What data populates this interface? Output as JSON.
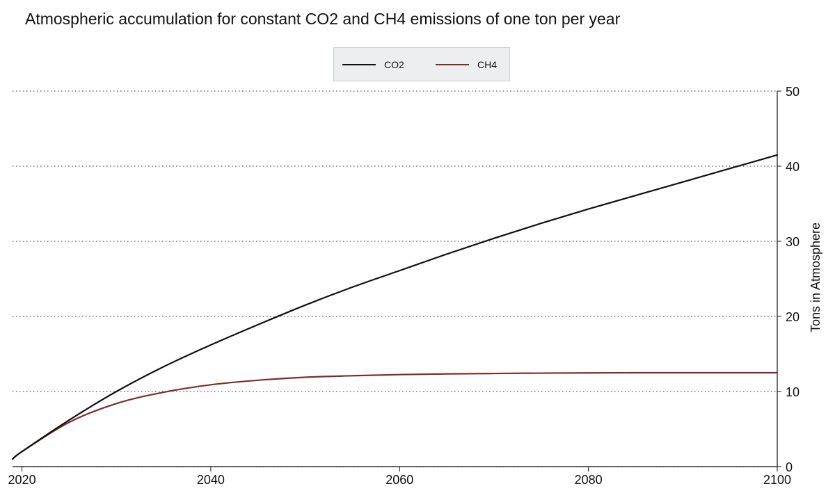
{
  "chart_data": {
    "type": "line",
    "title": "Atmospheric accumulation for constant CO2 and CH4 emissions of one ton per year",
    "xlabel": "",
    "ylabel": "Tons in Atmosphere",
    "xlim": [
      2019,
      2100
    ],
    "ylim": [
      0,
      50
    ],
    "x_ticks": [
      2020,
      2040,
      2060,
      2080,
      2100
    ],
    "y_ticks": [
      0,
      10,
      20,
      30,
      40,
      50
    ],
    "y_axis_side": "right",
    "grid": "horizontal dotted",
    "legend_position": "top-center",
    "series": [
      {
        "name": "CO2",
        "color": "#111111",
        "x": [
          2019,
          2020,
          2025,
          2030,
          2035,
          2040,
          2045,
          2050,
          2055,
          2060,
          2065,
          2070,
          2075,
          2080,
          2085,
          2090,
          2095,
          2100
        ],
        "y": [
          1.0,
          2.0,
          6.2,
          10.0,
          13.3,
          16.2,
          18.9,
          21.5,
          23.9,
          26.1,
          28.3,
          30.4,
          32.4,
          34.3,
          36.1,
          37.9,
          39.7,
          41.5
        ]
      },
      {
        "name": "CH4",
        "color": "#7b2e2b",
        "x": [
          2019,
          2020,
          2025,
          2030,
          2035,
          2040,
          2045,
          2050,
          2055,
          2060,
          2065,
          2070,
          2075,
          2080,
          2085,
          2090,
          2095,
          2100
        ],
        "y": [
          1.0,
          2.0,
          5.9,
          8.4,
          9.9,
          10.9,
          11.5,
          11.9,
          12.1,
          12.25,
          12.35,
          12.4,
          12.45,
          12.48,
          12.5,
          12.5,
          12.5,
          12.5
        ]
      }
    ]
  }
}
